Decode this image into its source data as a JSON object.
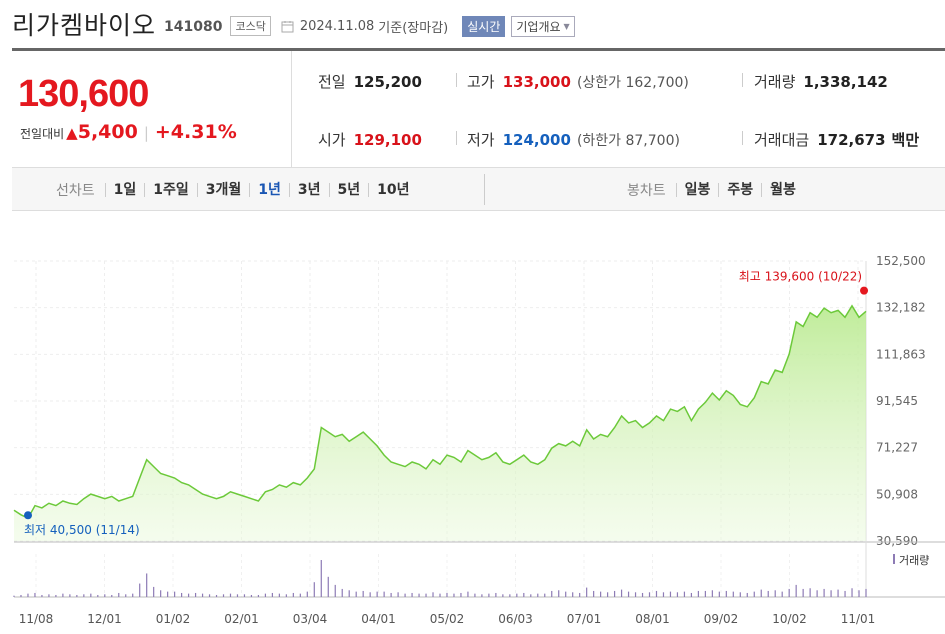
{
  "header": {
    "stock_name": "리가켐바이오",
    "stock_code": "141080",
    "market": "코스닥",
    "date": "2024.11.08",
    "date_note": "기준(장마감)",
    "realtime_label": "실시간",
    "company_overview_label": "기업개요"
  },
  "price": {
    "current": "130,600",
    "change_label": "전일대비",
    "change_arrow": "▲",
    "change_value": "5,400",
    "change_pct": "+4.31%"
  },
  "stats": {
    "prev_close_label": "전일",
    "prev_close": "125,200",
    "high_label": "고가",
    "high": "133,000",
    "upper_limit": "(상한가 162,700)",
    "volume_label": "거래량",
    "volume": "1,338,142",
    "open_label": "시가",
    "open": "129,100",
    "low_label": "저가",
    "low": "124,000",
    "lower_limit": "(하한가 87,700)",
    "trade_value_label": "거래대금",
    "trade_value": "172,673",
    "trade_value_unit": "백만"
  },
  "period_bar": {
    "line_chart_label": "선차트",
    "line_periods": [
      "1일",
      "1주일",
      "3개월",
      "1년",
      "3년",
      "5년",
      "10년"
    ],
    "active_period": "1년",
    "candle_chart_label": "봉차트",
    "candle_periods": [
      "일봉",
      "주봉",
      "월봉"
    ]
  },
  "colors": {
    "up": "#e4181f",
    "down": "#1560bd",
    "line": "#6cc93a",
    "active": "#1a56b3"
  },
  "chart_data": {
    "type": "area",
    "x_ticks": [
      "11/08",
      "12/01",
      "01/02",
      "02/01",
      "03/04",
      "04/01",
      "05/02",
      "06/03",
      "07/01",
      "08/01",
      "09/02",
      "10/02",
      "11/01"
    ],
    "y_ticks": [
      152500,
      132182,
      111863,
      91545,
      71227,
      50908,
      30590
    ],
    "y_tick_labels": [
      "152,500",
      "132,182",
      "111,863",
      "91,545",
      "71,227",
      "50,908",
      "30,590"
    ],
    "ylim": [
      30590,
      152500
    ],
    "max_label": "최고 139,600 (10/22)",
    "max_value": 139600,
    "min_label": "최저 40,500 (11/14)",
    "min_value": 40500,
    "volume_legend": "거래량",
    "series": [
      {
        "values": [
          44000,
          42000,
          40500,
          46000,
          45000,
          47000,
          46000,
          48000,
          47000,
          46500,
          49000,
          51000,
          50000,
          49000,
          50000,
          48000,
          49000,
          50000,
          58000,
          66000,
          63000,
          60000,
          59000,
          58000,
          56000,
          55000,
          53000,
          51000,
          50000,
          49000,
          50000,
          52000,
          51000,
          50000,
          49000,
          48000,
          52000,
          53000,
          55000,
          54000,
          56000,
          55000,
          58000,
          62000,
          80000,
          78000,
          76000,
          77000,
          74000,
          76000,
          78000,
          75000,
          72000,
          68000,
          65000,
          64000,
          63000,
          65000,
          64000,
          62000,
          66000,
          64000,
          68000,
          67000,
          65000,
          70000,
          68000,
          66000,
          67000,
          69000,
          65000,
          64000,
          66000,
          68000,
          65000,
          64000,
          66000,
          71000,
          73000,
          72000,
          74000,
          72000,
          79000,
          75000,
          77000,
          76000,
          80000,
          85000,
          82000,
          83000,
          80000,
          82000,
          85000,
          83000,
          88000,
          87000,
          89000,
          83000,
          88000,
          91000,
          95000,
          92000,
          96000,
          94000,
          90000,
          89000,
          93000,
          100000,
          99000,
          105000,
          104000,
          112000,
          126000,
          124000,
          130000,
          128000,
          132000,
          130000,
          131000,
          128000,
          133000,
          128000,
          130600
        ]
      }
    ],
    "volume": [
      2,
      3,
      5,
      6,
      3,
      4,
      3,
      5,
      4,
      3,
      4,
      5,
      3,
      4,
      3,
      6,
      4,
      5,
      20,
      35,
      15,
      10,
      8,
      8,
      6,
      5,
      6,
      5,
      4,
      3,
      4,
      5,
      4,
      4,
      3,
      3,
      5,
      6,
      5,
      4,
      6,
      5,
      8,
      22,
      55,
      30,
      18,
      12,
      10,
      8,
      9,
      7,
      8,
      8,
      6,
      7,
      5,
      6,
      5,
      5,
      7,
      5,
      6,
      5,
      6,
      8,
      5,
      4,
      5,
      6,
      4,
      4,
      5,
      6,
      4,
      5,
      5,
      9,
      10,
      8,
      7,
      6,
      14,
      9,
      8,
      7,
      9,
      11,
      8,
      7,
      6,
      7,
      9,
      7,
      8,
      7,
      8,
      6,
      9,
      9,
      10,
      8,
      9,
      8,
      7,
      6,
      8,
      11,
      9,
      10,
      8,
      12,
      18,
      12,
      13,
      10,
      12,
      10,
      11,
      9,
      13,
      10,
      12
    ]
  }
}
